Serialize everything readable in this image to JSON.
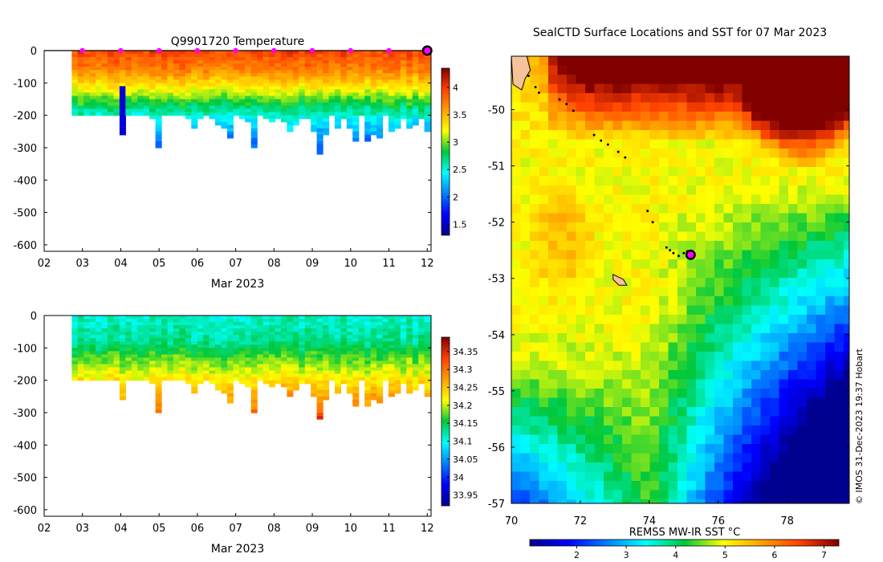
{
  "chart_data": [
    {
      "id": "temperature",
      "type": "heatmap",
      "title": "Q9901720  Temperature",
      "xlabel": "Mar 2023",
      "ylabel": "",
      "xlim": [
        2,
        12.1
      ],
      "ylim": [
        -620,
        0
      ],
      "x_ticks": [
        2,
        3,
        4,
        5,
        6,
        7,
        8,
        9,
        10,
        11,
        12
      ],
      "x_tick_labels": [
        "02",
        "03",
        "04",
        "05",
        "06",
        "07",
        "08",
        "09",
        "10",
        "11",
        "12"
      ],
      "y_ticks": [
        0,
        -100,
        -200,
        -300,
        -400,
        -500,
        -600
      ],
      "y_tick_labels": [
        "0",
        "-100",
        "-200",
        "-300",
        "-400",
        "-500",
        "-600"
      ],
      "colorbar": {
        "range": [
          1.3,
          4.35
        ],
        "ticks": [
          1.5,
          2,
          2.5,
          3,
          3.5,
          4
        ],
        "tick_labels": [
          "1.5",
          "2",
          "2.5",
          "3",
          "3.5",
          "4"
        ]
      },
      "day_markers": [
        3,
        4,
        5,
        6,
        7,
        8,
        9,
        10,
        11
      ],
      "current_position_x": 12,
      "profile_start": 2.72,
      "profile_end": 12.08,
      "profile_count": 60,
      "profile_max_depths": [
        200,
        200,
        200,
        200,
        200,
        200,
        200,
        200,
        260,
        200,
        200,
        200,
        200,
        210,
        300,
        200,
        200,
        200,
        200,
        210,
        240,
        210,
        200,
        210,
        225,
        240,
        265,
        200,
        210,
        215,
        300,
        200,
        210,
        215,
        210,
        220,
        250,
        225,
        205,
        210,
        250,
        315,
        260,
        200,
        240,
        210,
        235,
        280,
        200,
        275,
        255,
        270,
        200,
        250,
        240,
        205,
        235,
        230,
        205,
        250
      ],
      "depth_anchors": [
        0,
        60,
        110,
        160,
        210,
        260,
        310
      ],
      "value_anchors": [
        3.95,
        3.7,
        3.3,
        2.85,
        2.45,
        2.15,
        2.0
      ]
    },
    {
      "id": "salinity",
      "type": "heatmap",
      "title": "",
      "xlabel": "Mar 2023",
      "ylabel": "",
      "xlim": [
        2,
        12.1
      ],
      "ylim": [
        -620,
        0
      ],
      "x_ticks": [
        2,
        3,
        4,
        5,
        6,
        7,
        8,
        9,
        10,
        11,
        12
      ],
      "x_tick_labels": [
        "02",
        "03",
        "04",
        "05",
        "06",
        "07",
        "08",
        "09",
        "10",
        "11",
        "12"
      ],
      "y_ticks": [
        0,
        -100,
        -200,
        -300,
        -400,
        -500,
        -600
      ],
      "y_tick_labels": [
        "0",
        "-100",
        "-200",
        "-300",
        "-400",
        "-500",
        "-600"
      ],
      "colorbar": {
        "range": [
          33.92,
          34.39
        ],
        "ticks": [
          33.95,
          34,
          34.05,
          34.1,
          34.15,
          34.2,
          34.25,
          34.3,
          34.35
        ],
        "tick_labels": [
          "33.95",
          "34",
          "34.05",
          "34.1",
          "34.15",
          "34.2",
          "34.25",
          "34.3",
          "34.35"
        ]
      },
      "profile_start": 2.72,
      "profile_end": 12.08,
      "profile_count": 60,
      "profile_max_depths": [
        200,
        200,
        200,
        200,
        200,
        200,
        200,
        200,
        260,
        200,
        200,
        200,
        200,
        210,
        300,
        200,
        200,
        200,
        200,
        210,
        240,
        210,
        200,
        210,
        225,
        240,
        265,
        200,
        210,
        215,
        300,
        200,
        210,
        215,
        210,
        220,
        250,
        225,
        205,
        210,
        250,
        315,
        260,
        200,
        240,
        210,
        235,
        280,
        200,
        275,
        255,
        270,
        200,
        250,
        240,
        205,
        235,
        230,
        205,
        250
      ],
      "depth_anchors": [
        0,
        80,
        140,
        190,
        240,
        290,
        320
      ],
      "value_anchors": [
        34.11,
        34.13,
        34.18,
        34.22,
        34.26,
        34.3,
        34.36
      ]
    },
    {
      "id": "sst-map",
      "type": "heatmap",
      "title": "SealCTD Surface Locations and SST for 07 Mar 2023",
      "xlabel": "",
      "ylabel": "",
      "xlim": [
        70,
        79.8
      ],
      "ylim": [
        -57,
        -49.05
      ],
      "x_ticks": [
        70,
        72,
        74,
        76,
        78
      ],
      "x_tick_labels": [
        "70",
        "72",
        "74",
        "76",
        "78"
      ],
      "y_ticks": [
        -50,
        -51,
        -52,
        -53,
        -54,
        -55,
        -56,
        -57
      ],
      "y_tick_labels": [
        "-50",
        "-51",
        "-52",
        "-53",
        "-54",
        "-55",
        "-56",
        "-57"
      ],
      "colorbar": {
        "label": "REMSS MW-IR SST °C",
        "range": [
          1.05,
          7.3
        ],
        "ticks": [
          2,
          3,
          4,
          5,
          6,
          7
        ],
        "tick_labels": [
          "2",
          "3",
          "4",
          "5",
          "6",
          "7"
        ]
      },
      "credit": "© IMOS 31-Dec-2023 19:37 Hobart",
      "track": [
        [
          70.5,
          -49.4
        ],
        [
          70.7,
          -49.6
        ],
        [
          70.8,
          -49.7
        ],
        [
          71.4,
          -49.82
        ],
        [
          71.6,
          -49.9
        ],
        [
          71.8,
          -50.02
        ],
        [
          72.4,
          -50.45
        ],
        [
          72.6,
          -50.55
        ],
        [
          72.8,
          -50.62
        ],
        [
          73.1,
          -50.75
        ],
        [
          73.3,
          -50.85
        ],
        [
          73.95,
          -51.8
        ],
        [
          74.1,
          -52.0
        ],
        [
          74.5,
          -52.45
        ],
        [
          74.6,
          -52.5
        ],
        [
          74.7,
          -52.55
        ],
        [
          74.85,
          -52.6
        ],
        [
          75.0,
          -52.55
        ],
        [
          75.1,
          -52.52
        ],
        [
          75.2,
          -52.58
        ]
      ],
      "current_position": [
        75.2,
        -52.58
      ],
      "land": [
        [
          [
            70.0,
            -49.05
          ],
          [
            70.45,
            -49.05
          ],
          [
            70.55,
            -49.3
          ],
          [
            70.4,
            -49.45
          ],
          [
            70.3,
            -49.65
          ],
          [
            70.05,
            -49.55
          ]
        ],
        [
          [
            72.95,
            -52.93
          ],
          [
            73.25,
            -53.02
          ],
          [
            73.35,
            -53.12
          ],
          [
            73.12,
            -53.12
          ],
          [
            72.95,
            -53.02
          ]
        ]
      ]
    }
  ]
}
